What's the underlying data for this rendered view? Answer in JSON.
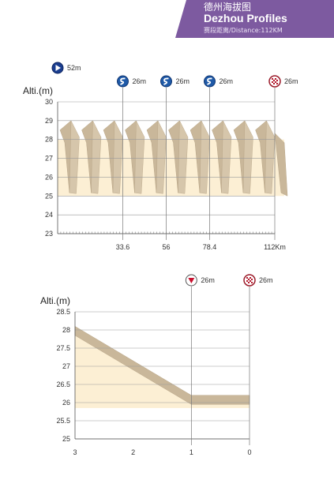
{
  "header": {
    "title_zh": "德州海拔图",
    "title_en": "Dezhou Profiles",
    "subtitle": "赛段距离/Distance:112KM"
  },
  "colors": {
    "banner": "#7d5aa0",
    "profile_fill": "#fcefd4",
    "ridge": "#c9b79a",
    "ridge_dark": "#b9a688"
  },
  "chart_data": [
    {
      "type": "area",
      "ylabel": "Alti.(m)",
      "ylim": [
        23,
        30
      ],
      "yticks": [
        23,
        24,
        25,
        26,
        27,
        28,
        29,
        30
      ],
      "xlim": [
        0,
        112
      ],
      "xticks": [
        {
          "value": 33.6,
          "label": "33.6"
        },
        {
          "value": 56,
          "label": "56"
        },
        {
          "value": 78.4,
          "label": "78.4"
        },
        {
          "value": 112,
          "label": "112Km"
        }
      ],
      "profile_base": 25,
      "profile_top": 28,
      "peak_top": 29,
      "peak_count": 10,
      "markers": [
        {
          "icon": "start-icon",
          "x": 0,
          "label": "52m"
        },
        {
          "icon": "sprint-icon",
          "x": 33.6,
          "label": "26m"
        },
        {
          "icon": "sprint-icon",
          "x": 56,
          "label": "26m"
        },
        {
          "icon": "sprint-icon",
          "x": 78.4,
          "label": "26m"
        },
        {
          "icon": "finish-icon",
          "x": 112,
          "label": "26m"
        }
      ]
    },
    {
      "type": "area",
      "ylabel": "Alti.(m)",
      "ylim": [
        25,
        28.5
      ],
      "yticks": [
        25,
        25.5,
        26,
        26.5,
        27,
        27.5,
        28,
        28.5
      ],
      "ytick_labels": [
        "25",
        "25.5",
        "26",
        "26.5",
        "27",
        "27.5",
        "28",
        "28.5"
      ],
      "xlim": [
        3,
        0
      ],
      "xticks": [
        {
          "value": 3,
          "label": "3"
        },
        {
          "value": 2,
          "label": "2"
        },
        {
          "value": 1,
          "label": "1"
        },
        {
          "value": 0,
          "label": "0"
        }
      ],
      "profile": [
        [
          3,
          27.85
        ],
        [
          1,
          25.95
        ],
        [
          0,
          25.95
        ]
      ],
      "profile_base": 25.85,
      "markers": [
        {
          "icon": "flamme-rouge-icon",
          "x": 1,
          "label": "26m"
        },
        {
          "icon": "finish-icon",
          "x": 0,
          "label": "26m"
        }
      ]
    }
  ]
}
